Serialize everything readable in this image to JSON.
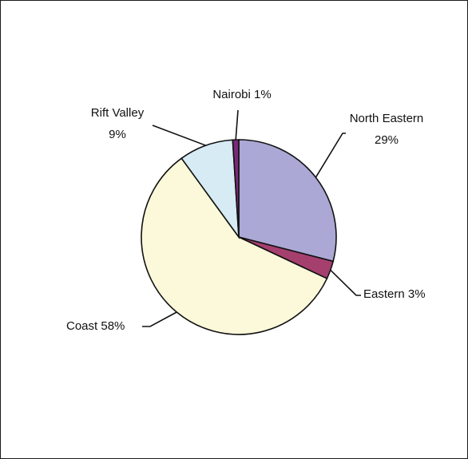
{
  "chart_data": {
    "type": "pie",
    "title": "",
    "slices": [
      {
        "name": "North Eastern",
        "value": 29,
        "label_lines": [
          "North Eastern",
          "29%"
        ],
        "color": "#ABA8D6"
      },
      {
        "name": "Eastern",
        "value": 3,
        "label_lines": [
          "Eastern 3%"
        ],
        "color": "#A53F6E"
      },
      {
        "name": "Coast",
        "value": 58,
        "label_lines": [
          "Coast 58%"
        ],
        "color": "#FCF9DA"
      },
      {
        "name": "Rift Valley",
        "value": 9,
        "label_lines": [
          "Rift Valley",
          "9%"
        ],
        "color": "#D6EBF3"
      },
      {
        "name": "Nairobi",
        "value": 1,
        "label_lines": [
          "Nairobi 1%"
        ],
        "color": "#7A2A7A"
      }
    ],
    "start": "12 o'clock",
    "direction": "clockwise",
    "legend": "none"
  }
}
